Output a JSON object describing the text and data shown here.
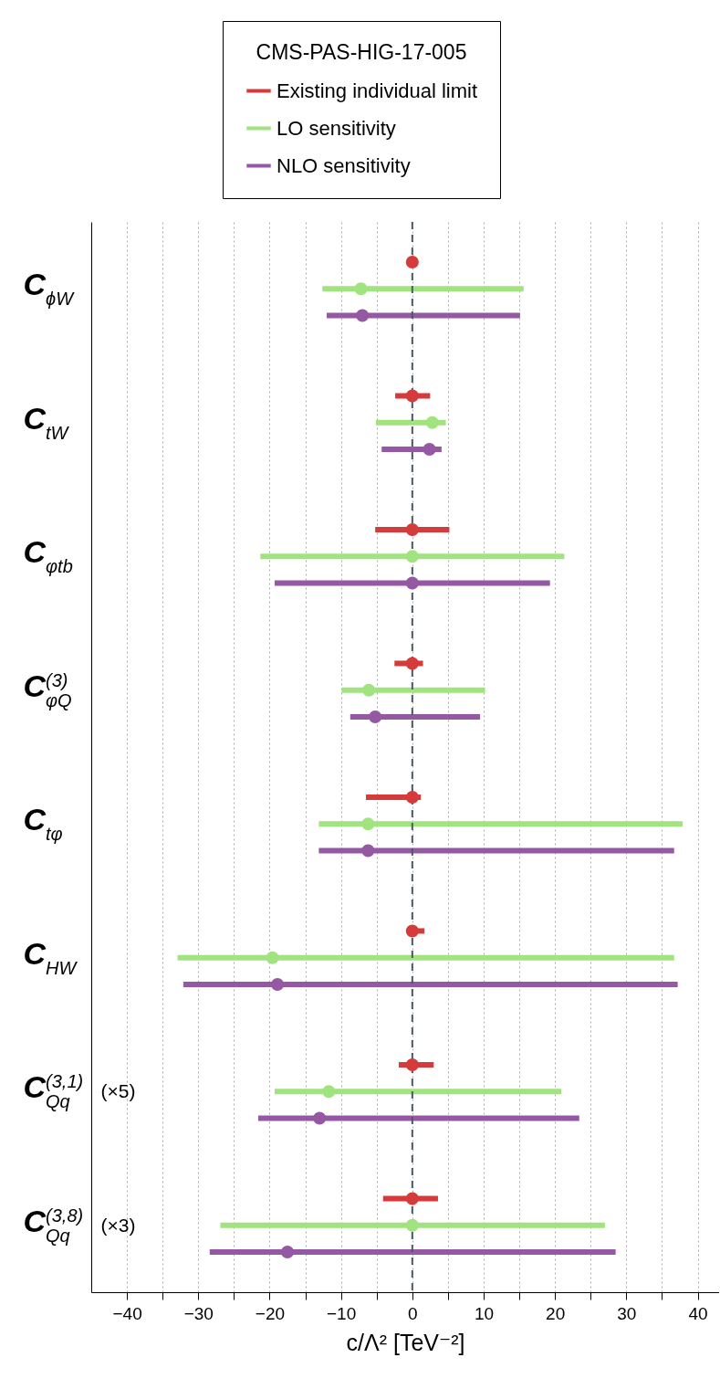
{
  "chart_data": {
    "type": "scatter",
    "orientation": "horizontal",
    "legend_title": "CMS-PAS-HIG-17-005",
    "xlabel": "c/Λ² [TeV⁻²]",
    "categories": [
      "C$_{ϕW}$",
      "C$_{tW}$",
      "C$_{φtb}$",
      "C$^{(3)}$$_{φQ}$",
      "C$_{tφ}$",
      "C$_{HW}$",
      "C$^{(3,1)}$$_{Qq}$ (×5)",
      "C$^{(3,8)}$$_{Qq}$ (×3)"
    ],
    "series": [
      {
        "name": "Existing individual limit",
        "color": "#d63b3b",
        "values": [
          0,
          0,
          0,
          0,
          0,
          0,
          0,
          0
        ],
        "errors": [
          null,
          [
            -2.4,
            2.5
          ],
          [
            -5.2,
            5.2
          ],
          [
            -2.5,
            1.5
          ],
          [
            -6.5,
            1.2
          ],
          [
            0,
            1.7
          ],
          [
            -1.9,
            3.0
          ],
          [
            -4.1,
            3.6
          ]
        ]
      },
      {
        "name": "LO sensitivity",
        "color": "#a1e37f",
        "values": [
          -7.2,
          2.8,
          0,
          -6.1,
          -6.2,
          -19.6,
          -11.7,
          0
        ],
        "errors": [
          [
            -12.6,
            15.6
          ],
          [
            -5.1,
            4.7
          ],
          [
            -21.3,
            21.3
          ],
          [
            -9.9,
            10.2
          ],
          [
            -13.1,
            37.9
          ],
          [
            -32.9,
            36.7
          ],
          [
            -19.3,
            20.9
          ],
          [
            -26.9,
            27.0
          ]
        ]
      },
      {
        "name": "NLO sensitivity",
        "color": "#9558a3",
        "values": [
          -7.0,
          2.4,
          0,
          -5.2,
          -6.2,
          -18.9,
          -13.0,
          -17.5
        ],
        "errors": [
          [
            -12.0,
            15.1
          ],
          [
            -4.3,
            4.1
          ],
          [
            -19.3,
            19.3
          ],
          [
            -8.7,
            9.5
          ],
          [
            -13.1,
            36.7
          ],
          [
            -32.1,
            37.2
          ],
          [
            -21.6,
            23.4
          ],
          [
            -28.4,
            28.5
          ]
        ]
      }
    ],
    "xlim": [
      -45,
      43
    ],
    "xticks": [
      -40,
      {
        "value": -35,
        "label": null
      },
      -30,
      {
        "value": -25,
        "label": null
      },
      -20,
      {
        "value": -15,
        "label": null
      },
      -10,
      {
        "value": -5,
        "label": null
      },
      0,
      {
        "value": 5,
        "label": null
      },
      10,
      {
        "value": 15,
        "label": null
      },
      20,
      {
        "value": 25,
        "label": null
      },
      30,
      {
        "value": 35,
        "label": null
      },
      40
    ],
    "grid": "x",
    "legend": "top",
    "marker": "circle",
    "ref_lines": [
      {
        "axis": "x",
        "value": 0,
        "line_style": "dashed",
        "color": "#4a5a66"
      }
    ]
  }
}
